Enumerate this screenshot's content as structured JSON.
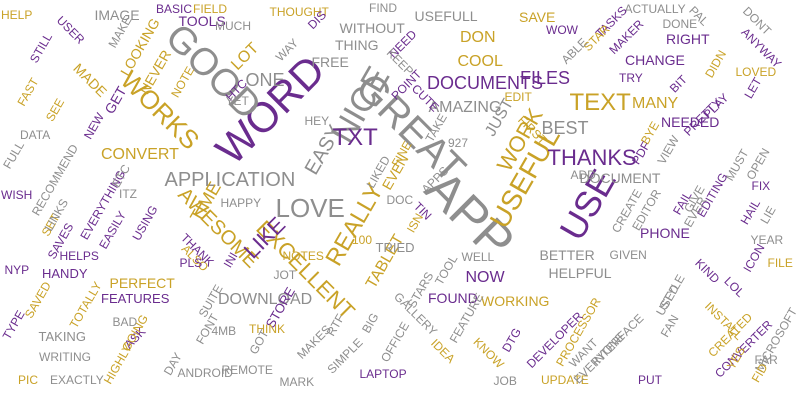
{
  "colors": {
    "gold": "#c9a227",
    "purple": "#6a2c8e",
    "gray": "#8e8e8e"
  },
  "words": [
    {
      "text": "APP",
      "c": "gray"
    },
    {
      "text": "GREAT",
      "c": "gray"
    },
    {
      "text": "WORD",
      "c": "purple"
    },
    {
      "text": "GOOD",
      "c": "gray"
    },
    {
      "text": "USE",
      "c": "purple"
    },
    {
      "text": "NICE",
      "c": "gray"
    },
    {
      "text": "USEFUL",
      "c": "gold"
    },
    {
      "text": "REALLY",
      "c": "gold"
    },
    {
      "text": "WORKS",
      "c": "gold"
    },
    {
      "text": "LOVE",
      "c": "gray"
    },
    {
      "text": "EXCELLENT",
      "c": "gold"
    },
    {
      "text": "THANKS",
      "c": "purple"
    },
    {
      "text": "TXT",
      "c": "purple"
    },
    {
      "text": "TEXT",
      "c": "gold"
    },
    {
      "text": "APPLICATION",
      "c": "gray"
    },
    {
      "text": "EASY",
      "c": "gray"
    },
    {
      "text": "AWESOME",
      "c": "gold"
    },
    {
      "text": "WORK",
      "c": "gold"
    },
    {
      "text": "JUST",
      "c": "gray"
    },
    {
      "text": "LIKE",
      "c": "purple"
    },
    {
      "text": "AMAZING",
      "c": "gray"
    },
    {
      "text": "DOCUMENTS",
      "c": "purple"
    },
    {
      "text": "BEST",
      "c": "gray"
    },
    {
      "text": "ONE",
      "c": "gray"
    },
    {
      "text": "LOT",
      "c": "gold"
    },
    {
      "text": "CONVERT",
      "c": "gold"
    },
    {
      "text": "TIME",
      "c": "gold"
    },
    {
      "text": "DOWNLOAD",
      "c": "gray"
    },
    {
      "text": "FILES",
      "c": "purple"
    },
    {
      "text": "MANY",
      "c": "gold"
    },
    {
      "text": "COOL",
      "c": "gold"
    },
    {
      "text": "DON",
      "c": "gold"
    },
    {
      "text": "TABLET",
      "c": "gold"
    },
    {
      "text": "DOCUMENT",
      "c": "gray"
    },
    {
      "text": "PHONE",
      "c": "purple"
    },
    {
      "text": "FOUND",
      "c": "purple"
    },
    {
      "text": "NOW",
      "c": "purple"
    },
    {
      "text": "HELPFUL",
      "c": "gray"
    },
    {
      "text": "BETTER",
      "c": "gray"
    },
    {
      "text": "FREE",
      "c": "gray"
    },
    {
      "text": "CHANGE",
      "c": "purple"
    },
    {
      "text": "NEEDED",
      "c": "purple"
    },
    {
      "text": "PERFECT",
      "c": "gold"
    },
    {
      "text": "SAVE",
      "c": "gold"
    },
    {
      "text": "RIGHT",
      "c": "purple"
    },
    {
      "text": "TOOLS",
      "c": "purple"
    },
    {
      "text": "IMAGE",
      "c": "gray"
    },
    {
      "text": "USEFULL",
      "c": "gray"
    },
    {
      "text": "WITHOUT",
      "c": "gray"
    },
    {
      "text": "THING",
      "c": "gray"
    },
    {
      "text": "GET",
      "c": "purple"
    },
    {
      "text": "LOOKING",
      "c": "gold"
    },
    {
      "text": "NEVER",
      "c": "gold"
    },
    {
      "text": "MADE",
      "c": "gold"
    },
    {
      "text": "RECOMMEND",
      "c": "gray"
    },
    {
      "text": "FEATURES",
      "c": "purple"
    },
    {
      "text": "HANDY",
      "c": "purple"
    },
    {
      "text": "HELPS",
      "c": "purple"
    },
    {
      "text": "TAKING",
      "c": "gray"
    },
    {
      "text": "WORKING",
      "c": "gold"
    },
    {
      "text": "NOTES",
      "c": "gold"
    },
    {
      "text": "TRIED",
      "c": "gray"
    },
    {
      "text": "JOB",
      "c": "gray"
    },
    {
      "text": "UPDATE",
      "c": "gold"
    },
    {
      "text": "LAPTOP",
      "c": "purple"
    },
    {
      "text": "WRITING",
      "c": "gray"
    },
    {
      "text": "EXACTLY",
      "c": "gray"
    },
    {
      "text": "REMOTE",
      "c": "gray"
    },
    {
      "text": "MARK",
      "c": "gray"
    },
    {
      "text": "PUT",
      "c": "purple"
    },
    {
      "text": "YEAR",
      "c": "gray"
    },
    {
      "text": "FIND",
      "c": "gray"
    },
    {
      "text": "THOUGHT",
      "c": "gold"
    },
    {
      "text": "DONE",
      "c": "gray"
    },
    {
      "text": "STORE",
      "c": "purple"
    },
    {
      "text": "ALSO",
      "c": "gold"
    },
    {
      "text": "THANK",
      "c": "purple"
    },
    {
      "text": "HAPPY",
      "c": "gray"
    },
    {
      "text": "ADD",
      "c": "gray"
    },
    {
      "text": "GIVEN",
      "c": "gray"
    },
    {
      "text": "SEE",
      "c": "gold"
    },
    {
      "text": "EVEN",
      "c": "gold"
    },
    {
      "text": "MUCH",
      "c": "gray"
    },
    {
      "text": "BASIC",
      "c": "purple"
    },
    {
      "text": "FIELD",
      "c": "gold"
    },
    {
      "text": "DATA",
      "c": "gray"
    },
    {
      "text": "USER",
      "c": "purple"
    },
    {
      "text": "HELP",
      "c": "gold"
    },
    {
      "text": "ACTUALLY",
      "c": "gray"
    },
    {
      "text": "PAL",
      "c": "gray"
    },
    {
      "text": "DONT",
      "c": "gray"
    },
    {
      "text": "ANYWAY",
      "c": "purple"
    },
    {
      "text": "TASKS",
      "c": "purple"
    },
    {
      "text": "MAKER",
      "c": "purple"
    },
    {
      "text": "STAR",
      "c": "gold"
    },
    {
      "text": "ABLE",
      "c": "gray"
    },
    {
      "text": "WOW",
      "c": "purple"
    },
    {
      "text": "NEED",
      "c": "purple"
    },
    {
      "text": "KEEP",
      "c": "gray"
    },
    {
      "text": "DIS",
      "c": "purple"
    },
    {
      "text": "WAY",
      "c": "gray"
    },
    {
      "text": "MAKE",
      "c": "gray"
    },
    {
      "text": "STILL",
      "c": "purple"
    },
    {
      "text": "FAST",
      "c": "gold"
    },
    {
      "text": "FULL",
      "c": "gray"
    },
    {
      "text": "NEW",
      "c": "purple"
    },
    {
      "text": "NOTE",
      "c": "gold"
    },
    {
      "text": "HTC",
      "c": "purple"
    },
    {
      "text": "YET",
      "c": "gray"
    },
    {
      "text": "POINT",
      "c": "purple"
    },
    {
      "text": "CUTE",
      "c": "purple"
    },
    {
      "text": "HEY",
      "c": "gray"
    },
    {
      "text": "LIKED",
      "c": "gray"
    },
    {
      "text": "TAKE",
      "c": "gray"
    },
    {
      "text": "927",
      "c": "gray"
    },
    {
      "text": "FIRST",
      "c": "gold"
    },
    {
      "text": "EDIT",
      "c": "gold"
    },
    {
      "text": "TRY",
      "c": "purple"
    },
    {
      "text": "BIT",
      "c": "purple"
    },
    {
      "text": "DIDN",
      "c": "gold"
    },
    {
      "text": "LET",
      "c": "purple"
    },
    {
      "text": "LOVED",
      "c": "gold"
    },
    {
      "text": "PRETTY",
      "c": "purple"
    },
    {
      "text": "PLAY",
      "c": "purple"
    },
    {
      "text": "BYE",
      "c": "gold"
    },
    {
      "text": "VIEW",
      "c": "gray"
    },
    {
      "text": "PDF",
      "c": "purple"
    },
    {
      "text": "MUST",
      "c": "gray"
    },
    {
      "text": "OPEN",
      "c": "gray"
    },
    {
      "text": "FIX",
      "c": "purple"
    },
    {
      "text": "EDITING",
      "c": "purple"
    },
    {
      "text": "HAIL",
      "c": "purple"
    },
    {
      "text": "LIE",
      "c": "gray"
    },
    {
      "text": "EVER",
      "c": "gray"
    },
    {
      "text": "GIVE",
      "c": "gray"
    },
    {
      "text": "FAIL",
      "c": "purple"
    },
    {
      "text": "CREATE",
      "c": "gray"
    },
    {
      "text": "EDITOR",
      "c": "gray"
    },
    {
      "text": "ICON",
      "c": "purple"
    },
    {
      "text": "FILE",
      "c": "gold"
    },
    {
      "text": "KIND",
      "c": "purple"
    },
    {
      "text": "LOL",
      "c": "purple"
    },
    {
      "text": "INSTALL",
      "c": "gold"
    },
    {
      "text": "STYLE",
      "c": "gray"
    },
    {
      "text": "CREATED",
      "c": "gold"
    },
    {
      "text": "USED",
      "c": "gray"
    },
    {
      "text": "MICROSOFT",
      "c": "gray"
    },
    {
      "text": "FAR",
      "c": "gray"
    },
    {
      "text": "CONVERTER",
      "c": "purple"
    },
    {
      "text": "FAN",
      "c": "gray"
    },
    {
      "text": "PROCESSOR",
      "c": "gold"
    },
    {
      "text": "DEVELOPER",
      "c": "purple"
    },
    {
      "text": "INTERFACE",
      "c": "gray"
    },
    {
      "text": "EVERYONE",
      "c": "gray"
    },
    {
      "text": "WANT",
      "c": "gray"
    },
    {
      "text": "YES",
      "c": "gold"
    },
    {
      "text": "FID",
      "c": "gold"
    },
    {
      "text": "DTG",
      "c": "purple"
    },
    {
      "text": "KNOW",
      "c": "gold"
    },
    {
      "text": "FEATURE",
      "c": "gray"
    },
    {
      "text": "IDEA",
      "c": "gold"
    },
    {
      "text": "GALLERY",
      "c": "gray"
    },
    {
      "text": "TOOL",
      "c": "gray"
    },
    {
      "text": "WELL",
      "c": "gray"
    },
    {
      "text": "BIG",
      "c": "gray"
    },
    {
      "text": "OFFICE",
      "c": "gray"
    },
    {
      "text": "RTF",
      "c": "gray"
    },
    {
      "text": "SIMPLE",
      "c": "gray"
    },
    {
      "text": "MAKES",
      "c": "gray"
    },
    {
      "text": "STARS",
      "c": "gray"
    },
    {
      "text": "100",
      "c": "gold"
    },
    {
      "text": "ISN",
      "c": "gold"
    },
    {
      "text": "TIN",
      "c": "purple"
    },
    {
      "text": "APPS",
      "c": "gray"
    },
    {
      "text": "FINE",
      "c": "gold"
    },
    {
      "text": "JOT",
      "c": "gray"
    },
    {
      "text": "INI",
      "c": "purple"
    },
    {
      "text": "THINK",
      "c": "gold"
    },
    {
      "text": "GOT",
      "c": "gray"
    },
    {
      "text": "4MB",
      "c": "gray"
    },
    {
      "text": "FONT",
      "c": "gray"
    },
    {
      "text": "ANDROID",
      "c": "gray"
    },
    {
      "text": "DAY",
      "c": "gray"
    },
    {
      "text": "ASK",
      "c": "purple"
    },
    {
      "text": "HIGHLY",
      "c": "gold"
    },
    {
      "text": "SUITE",
      "c": "gray"
    },
    {
      "text": "PLS",
      "c": "purple"
    },
    {
      "text": "BAD",
      "c": "gray"
    },
    {
      "text": "GOING",
      "c": "gold"
    },
    {
      "text": "TOTALLY",
      "c": "gold"
    },
    {
      "text": "SAVED",
      "c": "gold"
    },
    {
      "text": "TYPE",
      "c": "purple"
    },
    {
      "text": "NYP",
      "c": "purple"
    },
    {
      "text": "PIC",
      "c": "gold"
    },
    {
      "text": "SET",
      "c": "gold"
    },
    {
      "text": "EVERYTHING",
      "c": "purple"
    },
    {
      "text": "EASILY",
      "c": "purple"
    },
    {
      "text": "USING",
      "c": "purple"
    },
    {
      "text": "LINKS",
      "c": "gray"
    },
    {
      "text": "SAVES",
      "c": "purple"
    },
    {
      "text": "WISH",
      "c": "purple"
    },
    {
      "text": "ETC",
      "c": "gray"
    },
    {
      "text": "ITZ",
      "c": "gray"
    },
    {
      "text": "DOC",
      "c": "gray"
    }
  ]
}
